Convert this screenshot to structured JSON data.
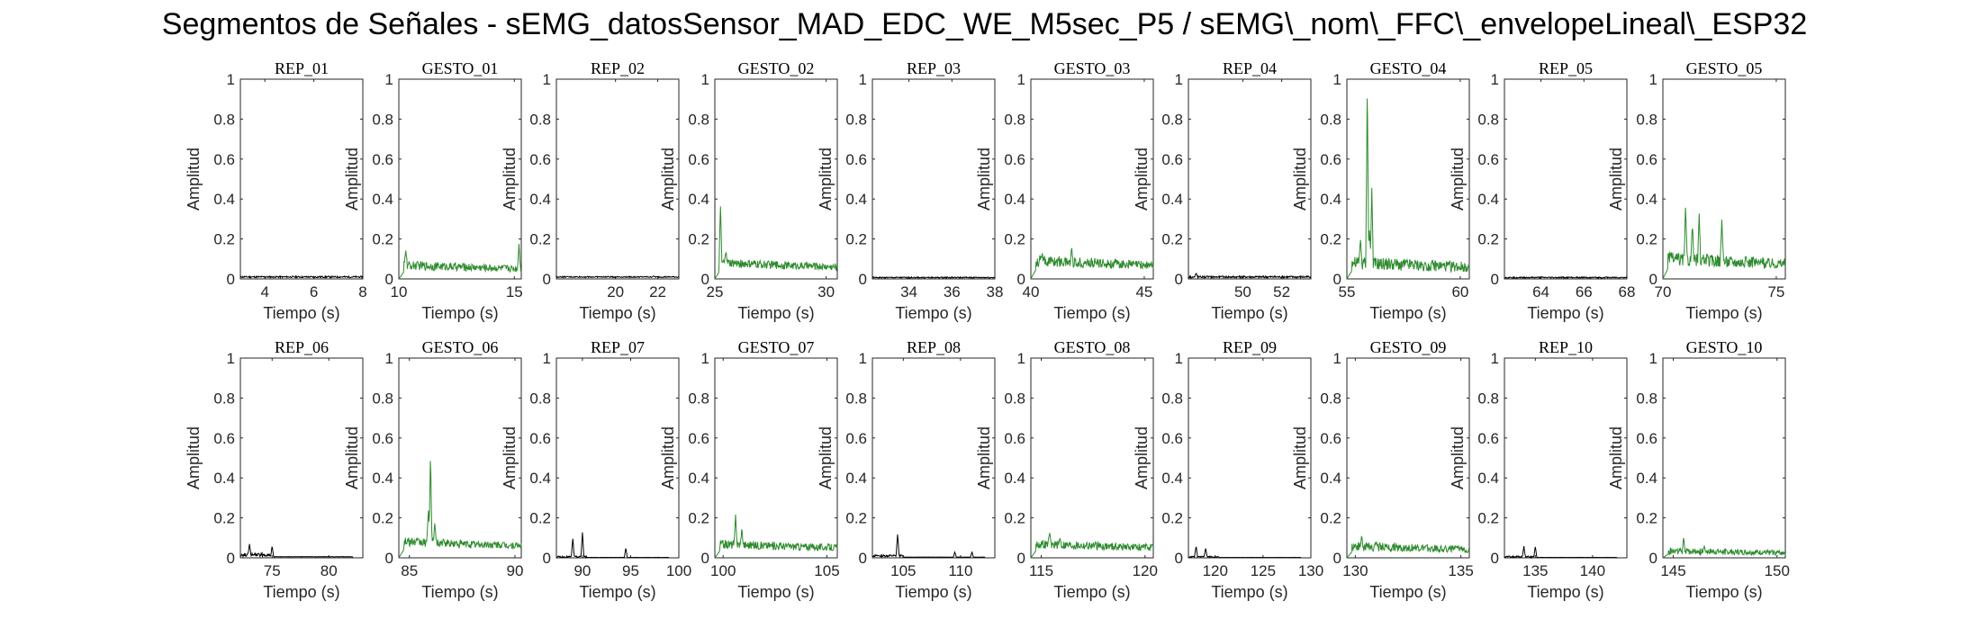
{
  "title": "Segmentos de Señales - sEMG_datosSensor_MAD_EDC_WE_M5sec_P5 / sEMG\\_nom\\_FFC\\_envelopeLineal\\_ESP32",
  "chart_data": {
    "type": "line",
    "xlabel": "Tiempo (s)",
    "ylabel": "Amplitud",
    "ylim": [
      0,
      1
    ],
    "yticks": [
      0,
      0.2,
      0.4,
      0.6,
      0.8,
      1
    ],
    "colors": {
      "rep": "#000000",
      "gesto": "#2e8b2e"
    },
    "subplots": [
      {
        "title": "REP_01",
        "kind": "rep",
        "xlim": [
          3,
          8
        ],
        "xticks": [
          4,
          6,
          8
        ],
        "base": 0.01,
        "noise": 0.004,
        "peaks": []
      },
      {
        "title": "GESTO_01",
        "kind": "gesto",
        "xlim": [
          10,
          15.3
        ],
        "xticks": [
          10,
          15
        ],
        "base": 0.06,
        "noise": 0.02,
        "peaks": [
          [
            10.3,
            0.15
          ],
          [
            15.2,
            0.18
          ]
        ]
      },
      {
        "title": "REP_02",
        "kind": "rep",
        "xlim": [
          17.2,
          23
        ],
        "xticks": [
          20,
          22
        ],
        "base": 0.01,
        "noise": 0.003,
        "peaks": [
          [
            21.8,
            0.015
          ]
        ]
      },
      {
        "title": "GESTO_02",
        "kind": "gesto",
        "xlim": [
          25,
          30.5
        ],
        "xticks": [
          25,
          30
        ],
        "base": 0.07,
        "noise": 0.02,
        "peaks": [
          [
            25.25,
            0.38
          ],
          [
            25.5,
            0.14
          ]
        ]
      },
      {
        "title": "REP_03",
        "kind": "rep",
        "xlim": [
          32.3,
          38
        ],
        "xticks": [
          34,
          36,
          38
        ],
        "base": 0.007,
        "noise": 0.003,
        "peaks": []
      },
      {
        "title": "GESTO_03",
        "kind": "gesto",
        "xlim": [
          40,
          45.4
        ],
        "xticks": [
          40,
          45
        ],
        "base": 0.08,
        "noise": 0.025,
        "peaks": [
          [
            41.8,
            0.16
          ],
          [
            40.5,
            0.13
          ]
        ]
      },
      {
        "title": "REP_04",
        "kind": "rep",
        "xlim": [
          47.2,
          53.5
        ],
        "xticks": [
          50,
          52
        ],
        "base": 0.01,
        "noise": 0.005,
        "peaks": [
          [
            47.6,
            0.03
          ]
        ]
      },
      {
        "title": "GESTO_04",
        "kind": "gesto",
        "xlim": [
          55,
          60.4
        ],
        "xticks": [
          55,
          60
        ],
        "base": 0.07,
        "noise": 0.03,
        "peaks": [
          [
            55.9,
            1.0
          ],
          [
            56.1,
            0.46
          ],
          [
            56.0,
            0.25
          ],
          [
            55.6,
            0.2
          ]
        ]
      },
      {
        "title": "REP_05",
        "kind": "rep",
        "xlim": [
          62.3,
          68
        ],
        "xticks": [
          64,
          66,
          68
        ],
        "base": 0.007,
        "noise": 0.003,
        "peaks": []
      },
      {
        "title": "GESTO_05",
        "kind": "gesto",
        "xlim": [
          70,
          75.4
        ],
        "xticks": [
          70,
          75
        ],
        "base": 0.09,
        "noise": 0.03,
        "peaks": [
          [
            71.0,
            0.37
          ],
          [
            71.6,
            0.33
          ],
          [
            72.6,
            0.31
          ],
          [
            71.3,
            0.27
          ]
        ]
      },
      {
        "title": "REP_06",
        "kind": "rep",
        "xlim": [
          72.2,
          83
        ],
        "xticks": [
          75,
          80
        ],
        "base": 0.015,
        "noise": 0.008,
        "peaks": [
          [
            73,
            0.07
          ],
          [
            75,
            0.06
          ]
        ]
      },
      {
        "title": "GESTO_06",
        "kind": "gesto",
        "xlim": [
          84.5,
          90.3
        ],
        "xticks": [
          85,
          90
        ],
        "base": 0.07,
        "noise": 0.02,
        "peaks": [
          [
            86.0,
            0.52
          ],
          [
            85.9,
            0.25
          ],
          [
            86.2,
            0.18
          ]
        ]
      },
      {
        "title": "REP_07",
        "kind": "rep",
        "xlim": [
          87.3,
          100
        ],
        "xticks": [
          90,
          95,
          100
        ],
        "base": 0.005,
        "noise": 0.004,
        "peaks": [
          [
            89,
            0.1
          ],
          [
            90,
            0.13
          ],
          [
            94.5,
            0.05
          ]
        ]
      },
      {
        "title": "GESTO_07",
        "kind": "gesto",
        "xlim": [
          99.6,
          105.5
        ],
        "xticks": [
          100,
          105
        ],
        "base": 0.06,
        "noise": 0.02,
        "peaks": [
          [
            100.6,
            0.22
          ],
          [
            100.9,
            0.15
          ]
        ]
      },
      {
        "title": "REP_08",
        "kind": "rep",
        "xlim": [
          102.3,
          113
        ],
        "xticks": [
          105,
          110
        ],
        "base": 0.01,
        "noise": 0.005,
        "peaks": [
          [
            104.5,
            0.12
          ],
          [
            109.5,
            0.03
          ],
          [
            111,
            0.03
          ]
        ]
      },
      {
        "title": "GESTO_08",
        "kind": "gesto",
        "xlim": [
          114.5,
          120.4
        ],
        "xticks": [
          115,
          120
        ],
        "base": 0.06,
        "noise": 0.02,
        "peaks": [
          [
            115.4,
            0.13
          ],
          [
            115.9,
            0.1
          ]
        ]
      },
      {
        "title": "REP_09",
        "kind": "rep",
        "xlim": [
          117.2,
          130
        ],
        "xticks": [
          120,
          125,
          130
        ],
        "base": 0.005,
        "noise": 0.003,
        "peaks": [
          [
            118,
            0.06
          ],
          [
            119,
            0.05
          ]
        ]
      },
      {
        "title": "GESTO_09",
        "kind": "gesto",
        "xlim": [
          129.6,
          135.4
        ],
        "xticks": [
          130,
          135
        ],
        "base": 0.05,
        "noise": 0.02,
        "peaks": [
          [
            130.3,
            0.11
          ],
          [
            131.0,
            0.08
          ]
        ]
      },
      {
        "title": "REP_10",
        "kind": "rep",
        "xlim": [
          132.3,
          143
        ],
        "xticks": [
          135,
          140
        ],
        "base": 0.005,
        "noise": 0.004,
        "peaks": [
          [
            134,
            0.06
          ],
          [
            135,
            0.06
          ]
        ]
      },
      {
        "title": "GESTO_10",
        "kind": "gesto",
        "xlim": [
          144.5,
          150.4
        ],
        "xticks": [
          145,
          150
        ],
        "base": 0.03,
        "noise": 0.015,
        "peaks": [
          [
            145.5,
            0.1
          ],
          [
            146.5,
            0.06
          ]
        ]
      }
    ]
  }
}
